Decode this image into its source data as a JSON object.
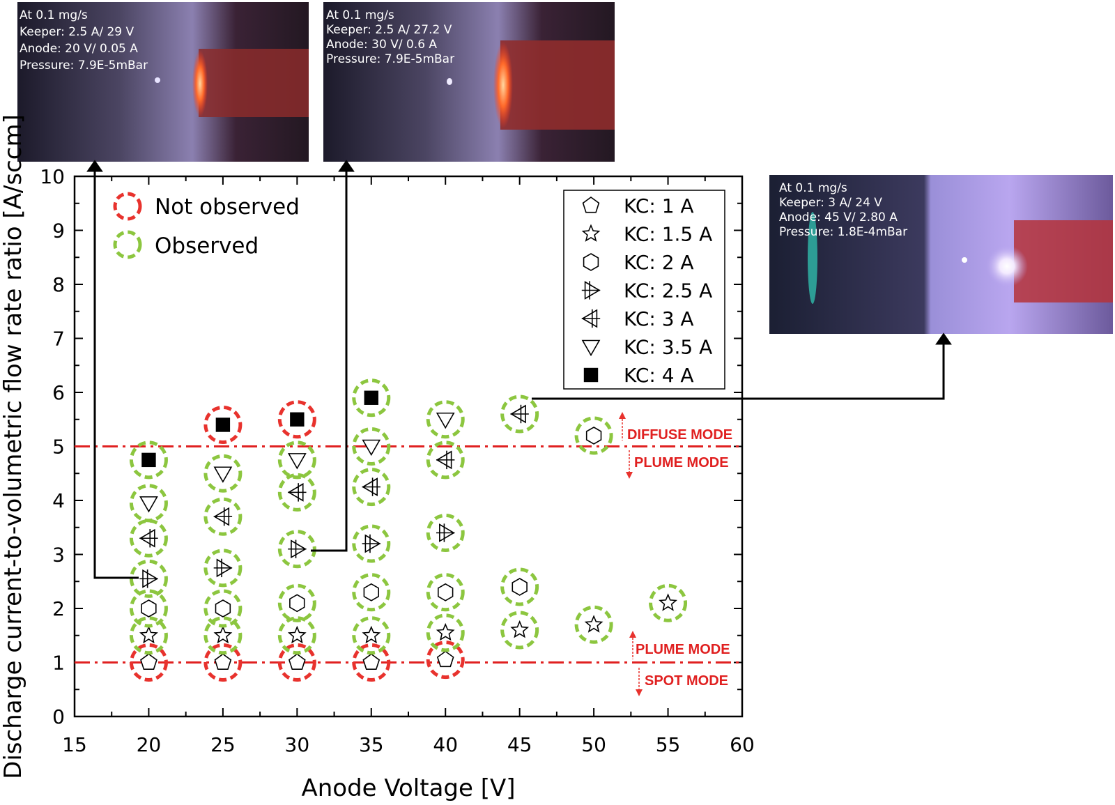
{
  "colors": {
    "not_observed": "#e8322d",
    "observed": "#8cc63f",
    "threshold_line": "#e02020",
    "mode_text": "#e02020"
  },
  "photos": [
    {
      "lines": [
        "At 0.1 mg/s",
        "Keeper: 2.5 A/ 29 V",
        "Anode: 20 V/ 0.05 A",
        "Pressure: 7.9E-5mBar"
      ]
    },
    {
      "lines": [
        "At 0.1 mg/s",
        "Keeper: 2.5 A/ 27.2 V",
        "Anode: 30 V/ 0.6 A",
        "Pressure: 7.9E-5mBar"
      ]
    },
    {
      "lines": [
        "At 0.1 mg/s",
        "Keeper: 3 A/ 24 V",
        "Anode: 45 V/ 2.80 A",
        "Pressure: 1.8E-4mBar"
      ]
    }
  ],
  "observation_legend": {
    "not_observed": "Not observed",
    "observed": "Observed"
  },
  "modes": {
    "diffuse": "DIFFUSE MODE",
    "plume_upper": "PLUME MODE",
    "plume_lower": "PLUME MODE",
    "spot": "SPOT MODE"
  },
  "chart_data": {
    "type": "scatter",
    "xlabel": "Anode Voltage [V]",
    "ylabel": "Discharge current-to-volumetric flow rate ratio [A/sccm]",
    "xlim": [
      15,
      60
    ],
    "ylim": [
      0,
      10
    ],
    "x_ticks": [
      "15",
      "20",
      "25",
      "30",
      "35",
      "40",
      "45",
      "50",
      "55",
      "60"
    ],
    "y_ticks": [
      "0",
      "1",
      "2",
      "3",
      "4",
      "5",
      "6",
      "7",
      "8",
      "9",
      "10"
    ],
    "grid": false,
    "legend_position": "top-right",
    "thresholds": [
      5,
      1
    ],
    "series": [
      {
        "name": "KC: 1 A",
        "marker": "pentagon",
        "points": [
          {
            "x": 20,
            "y": 1.0,
            "observed": false
          },
          {
            "x": 25,
            "y": 1.0,
            "observed": false
          },
          {
            "x": 30,
            "y": 1.0,
            "observed": false
          },
          {
            "x": 35,
            "y": 1.0,
            "observed": false
          },
          {
            "x": 40,
            "y": 1.05,
            "observed": false
          }
        ]
      },
      {
        "name": "KC: 1.5 A",
        "marker": "star",
        "points": [
          {
            "x": 20,
            "y": 1.5,
            "observed": true
          },
          {
            "x": 25,
            "y": 1.5,
            "observed": true
          },
          {
            "x": 30,
            "y": 1.5,
            "observed": true
          },
          {
            "x": 35,
            "y": 1.5,
            "observed": true
          },
          {
            "x": 40,
            "y": 1.55,
            "observed": true
          },
          {
            "x": 45,
            "y": 1.6,
            "observed": true
          },
          {
            "x": 50,
            "y": 1.7,
            "observed": true
          },
          {
            "x": 55,
            "y": 2.1,
            "observed": true
          }
        ]
      },
      {
        "name": "KC: 2 A",
        "marker": "hexagon",
        "points": [
          {
            "x": 20,
            "y": 2.0,
            "observed": true
          },
          {
            "x": 25,
            "y": 2.0,
            "observed": true
          },
          {
            "x": 30,
            "y": 2.1,
            "observed": true
          },
          {
            "x": 35,
            "y": 2.3,
            "observed": true
          },
          {
            "x": 40,
            "y": 2.3,
            "observed": true
          },
          {
            "x": 45,
            "y": 2.4,
            "observed": true
          },
          {
            "x": 50,
            "y": 5.2,
            "observed": true
          }
        ]
      },
      {
        "name": "KC: 2.5 A",
        "marker": "right-arrow",
        "points": [
          {
            "x": 20,
            "y": 2.55,
            "observed": true
          },
          {
            "x": 25,
            "y": 2.75,
            "observed": true
          },
          {
            "x": 30,
            "y": 3.1,
            "observed": true
          },
          {
            "x": 35,
            "y": 3.2,
            "observed": true
          },
          {
            "x": 40,
            "y": 3.4,
            "observed": true
          }
        ]
      },
      {
        "name": "KC: 3 A",
        "marker": "left-arrow",
        "points": [
          {
            "x": 20,
            "y": 3.3,
            "observed": true
          },
          {
            "x": 25,
            "y": 3.7,
            "observed": true
          },
          {
            "x": 30,
            "y": 4.15,
            "observed": true
          },
          {
            "x": 35,
            "y": 4.25,
            "observed": true
          },
          {
            "x": 40,
            "y": 4.75,
            "observed": true
          },
          {
            "x": 45,
            "y": 5.6,
            "observed": true
          }
        ]
      },
      {
        "name": "KC: 3.5 A",
        "marker": "down-triangle",
        "points": [
          {
            "x": 20,
            "y": 3.95,
            "observed": true
          },
          {
            "x": 25,
            "y": 4.5,
            "observed": true
          },
          {
            "x": 30,
            "y": 4.75,
            "observed": true
          },
          {
            "x": 35,
            "y": 5.0,
            "observed": true
          },
          {
            "x": 40,
            "y": 5.5,
            "observed": true
          }
        ]
      },
      {
        "name": "KC: 4 A",
        "marker": "filled-square",
        "points": [
          {
            "x": 20,
            "y": 4.75,
            "observed": true
          },
          {
            "x": 25,
            "y": 5.4,
            "observed": false
          },
          {
            "x": 30,
            "y": 5.5,
            "observed": false
          },
          {
            "x": 35,
            "y": 5.9,
            "observed": true
          }
        ]
      }
    ]
  }
}
